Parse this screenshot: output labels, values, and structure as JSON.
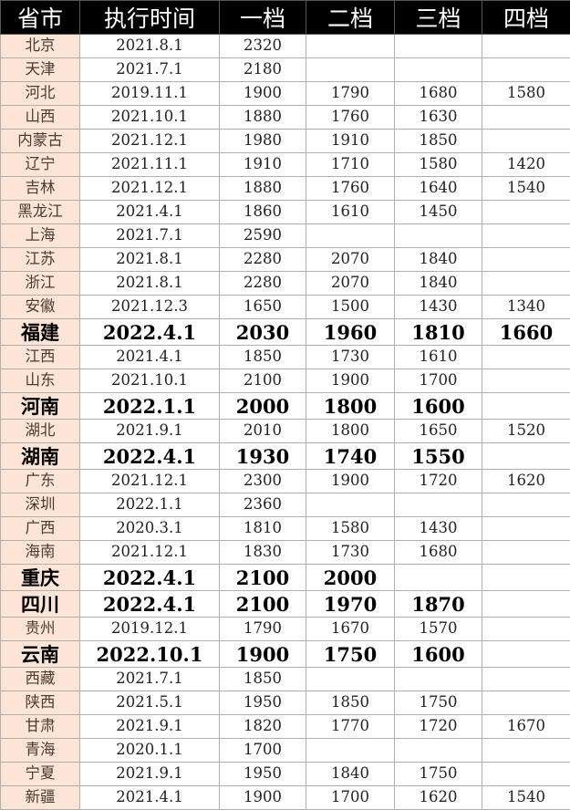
{
  "headers": [
    "省市",
    "执行时间",
    "一档",
    "二档",
    "三档",
    "四档"
  ],
  "rows": [
    {
      "p": "北京",
      "d": "2021.8.1",
      "t1": "2320",
      "t2": "",
      "t3": "",
      "t4": "",
      "bold": false
    },
    {
      "p": "天津",
      "d": "2021.7.1",
      "t1": "2180",
      "t2": "",
      "t3": "",
      "t4": "",
      "bold": false
    },
    {
      "p": "河北",
      "d": "2019.11.1",
      "t1": "1900",
      "t2": "1790",
      "t3": "1680",
      "t4": "1580",
      "bold": false
    },
    {
      "p": "山西",
      "d": "2021.10.1",
      "t1": "1880",
      "t2": "1760",
      "t3": "1630",
      "t4": "",
      "bold": false
    },
    {
      "p": "内蒙古",
      "d": "2021.12.1",
      "t1": "1980",
      "t2": "1910",
      "t3": "1850",
      "t4": "",
      "bold": false
    },
    {
      "p": "辽宁",
      "d": "2021.11.1",
      "t1": "1910",
      "t2": "1710",
      "t3": "1580",
      "t4": "1420",
      "bold": false
    },
    {
      "p": "吉林",
      "d": "2021.12.1",
      "t1": "1880",
      "t2": "1760",
      "t3": "1640",
      "t4": "1540",
      "bold": false
    },
    {
      "p": "黑龙江",
      "d": "2021.4.1",
      "t1": "1860",
      "t2": "1610",
      "t3": "1450",
      "t4": "",
      "bold": false
    },
    {
      "p": "上海",
      "d": "2021.7.1",
      "t1": "2590",
      "t2": "",
      "t3": "",
      "t4": "",
      "bold": false
    },
    {
      "p": "江苏",
      "d": "2021.8.1",
      "t1": "2280",
      "t2": "2070",
      "t3": "1840",
      "t4": "",
      "bold": false
    },
    {
      "p": "浙江",
      "d": "2021.8.1",
      "t1": "2280",
      "t2": "2070",
      "t3": "1840",
      "t4": "",
      "bold": false
    },
    {
      "p": "安徽",
      "d": "2021.12.3",
      "t1": "1650",
      "t2": "1500",
      "t3": "1430",
      "t4": "1340",
      "bold": false
    },
    {
      "p": "福建",
      "d": "2022.4.1",
      "t1": "2030",
      "t2": "1960",
      "t3": "1810",
      "t4": "1660",
      "bold": true
    },
    {
      "p": "江西",
      "d": "2021.4.1",
      "t1": "1850",
      "t2": "1730",
      "t3": "1610",
      "t4": "",
      "bold": false
    },
    {
      "p": "山东",
      "d": "2021.10.1",
      "t1": "2100",
      "t2": "1900",
      "t3": "1700",
      "t4": "",
      "bold": false
    },
    {
      "p": "河南",
      "d": "2022.1.1",
      "t1": "2000",
      "t2": "1800",
      "t3": "1600",
      "t4": "",
      "bold": true
    },
    {
      "p": "湖北",
      "d": "2021.9.1",
      "t1": "2010",
      "t2": "1800",
      "t3": "1650",
      "t4": "1520",
      "bold": false
    },
    {
      "p": "湖南",
      "d": "2022.4.1",
      "t1": "1930",
      "t2": "1740",
      "t3": "1550",
      "t4": "",
      "bold": true
    },
    {
      "p": "广东",
      "d": "2021.12.1",
      "t1": "2300",
      "t2": "1900",
      "t3": "1720",
      "t4": "1620",
      "bold": false
    },
    {
      "p": "深圳",
      "d": "2022.1.1",
      "t1": "2360",
      "t2": "",
      "t3": "",
      "t4": "",
      "bold": false
    },
    {
      "p": "广西",
      "d": "2020.3.1",
      "t1": "1810",
      "t2": "1580",
      "t3": "1430",
      "t4": "",
      "bold": false
    },
    {
      "p": "海南",
      "d": "2021.12.1",
      "t1": "1830",
      "t2": "1730",
      "t3": "1680",
      "t4": "",
      "bold": false
    },
    {
      "p": "重庆",
      "d": "2022.4.1",
      "t1": "2100",
      "t2": "2000",
      "t3": "",
      "t4": "",
      "bold": true
    },
    {
      "p": "四川",
      "d": "2022.4.1",
      "t1": "2100",
      "t2": "1970",
      "t3": "1870",
      "t4": "",
      "bold": true
    },
    {
      "p": "贵州",
      "d": "2019.12.1",
      "t1": "1790",
      "t2": "1670",
      "t3": "1570",
      "t4": "",
      "bold": false
    },
    {
      "p": "云南",
      "d": "2022.10.1",
      "t1": "1900",
      "t2": "1750",
      "t3": "1600",
      "t4": "",
      "bold": true
    },
    {
      "p": "西藏",
      "d": "2021.7.1",
      "t1": "1850",
      "t2": "",
      "t3": "",
      "t4": "",
      "bold": false
    },
    {
      "p": "陕西",
      "d": "2021.5.1",
      "t1": "1950",
      "t2": "1850",
      "t3": "1750",
      "t4": "",
      "bold": false
    },
    {
      "p": "甘肃",
      "d": "2021.9.1",
      "t1": "1820",
      "t2": "1770",
      "t3": "1720",
      "t4": "1670",
      "bold": false
    },
    {
      "p": "青海",
      "d": "2020.1.1",
      "t1": "1700",
      "t2": "",
      "t3": "",
      "t4": "",
      "bold": false
    },
    {
      "p": "宁夏",
      "d": "2021.9.1",
      "t1": "1950",
      "t2": "1840",
      "t3": "1750",
      "t4": "",
      "bold": false
    },
    {
      "p": "新疆",
      "d": "2021.4.1",
      "t1": "1900",
      "t2": "1700",
      "t3": "1620",
      "t4": "1540",
      "bold": false
    }
  ]
}
